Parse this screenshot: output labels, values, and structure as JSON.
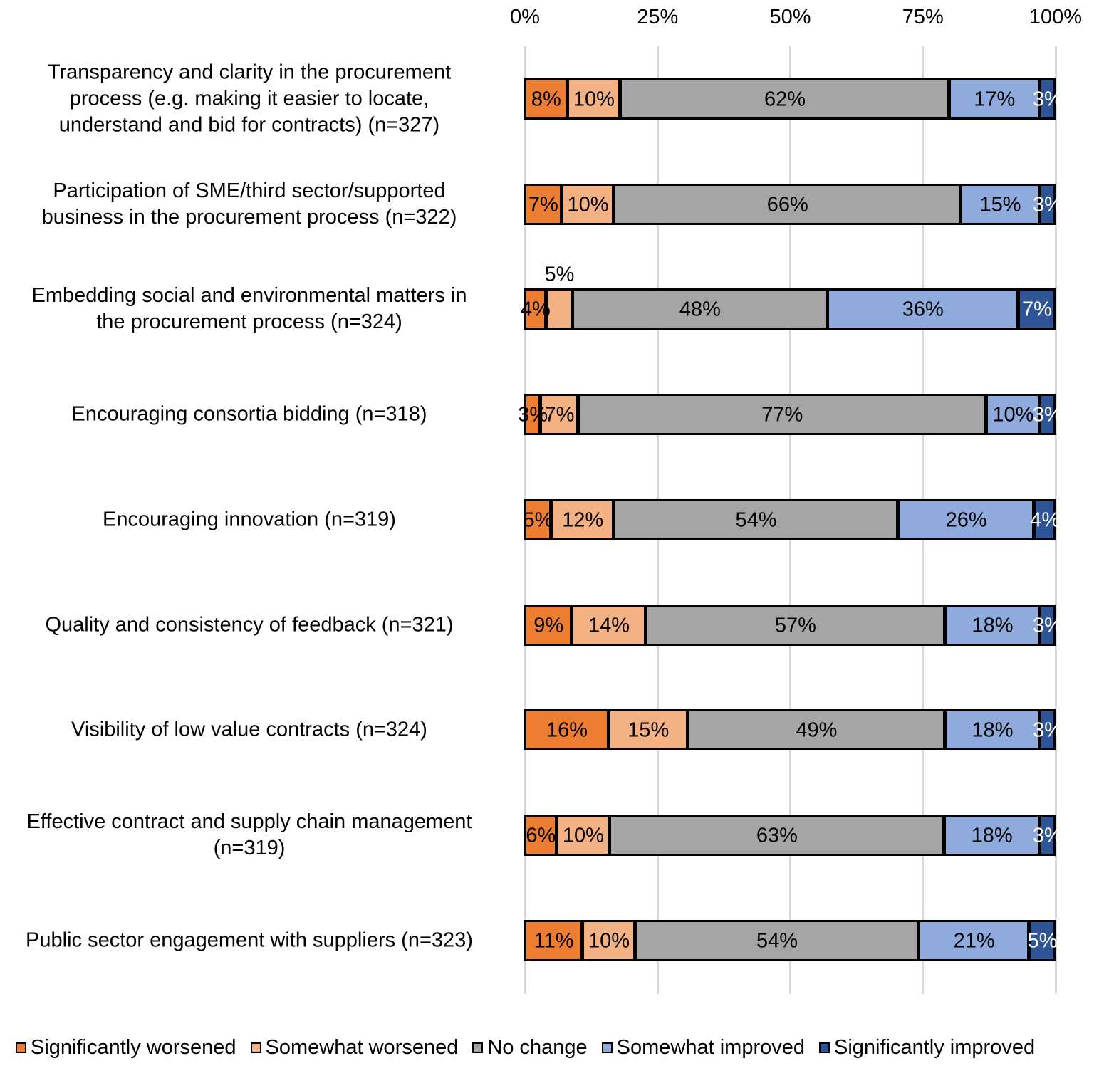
{
  "chart_data": {
    "type": "bar",
    "orientation": "horizontal",
    "stacked": "100%",
    "title": "",
    "xlim": [
      0,
      100
    ],
    "x_ticks": [
      "0%",
      "25%",
      "50%",
      "75%",
      "100%"
    ],
    "grid": true,
    "legend_position": "bottom",
    "categories": [
      "Transparency and clarity in the procurement\nprocess (e.g. making it easier to locate,\nunderstand and bid for contracts) (n=327)",
      "Participation of SME/third sector/supported\nbusiness in the procurement process (n=322)",
      "Embedding social and environmental matters in\nthe procurement process (n=324)",
      "Encouraging consortia bidding (n=318)",
      "Encouraging innovation (n=319)",
      "Quality and consistency of feedback (n=321)",
      "Visibility of low value contracts (n=324)",
      "Effective contract and supply chain management\n(n=319)",
      "Public sector engagement with suppliers (n=323)"
    ],
    "series": [
      {
        "name": "Significantly worsened",
        "color": "#ED7D31",
        "label_color": "#000000",
        "values": [
          8,
          7,
          4,
          3,
          5,
          9,
          16,
          6,
          11
        ]
      },
      {
        "name": "Somewhat worsened",
        "color": "#F4B183",
        "label_color": "#000000",
        "values": [
          10,
          10,
          5,
          7,
          12,
          14,
          15,
          10,
          10
        ]
      },
      {
        "name": "No change",
        "color": "#A5A5A5",
        "label_color": "#000000",
        "values": [
          62,
          66,
          48,
          77,
          54,
          57,
          49,
          63,
          54
        ]
      },
      {
        "name": "Somewhat improved",
        "color": "#8FAADC",
        "label_color": "#000000",
        "values": [
          17,
          15,
          36,
          10,
          26,
          18,
          18,
          18,
          21
        ]
      },
      {
        "name": "Significantly improved",
        "color": "#2F5597",
        "label_color": "#FFFFFF",
        "values": [
          3,
          3,
          7,
          3,
          4,
          3,
          3,
          3,
          5
        ]
      }
    ]
  }
}
